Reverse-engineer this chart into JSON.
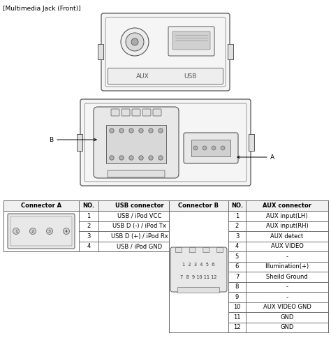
{
  "title": "[Multimedia Jack (Front)]",
  "title_fontsize": 6.5,
  "usb_table_headers": [
    "Connector A",
    "NO.",
    "USB connector"
  ],
  "usb_rows": [
    [
      "1",
      "USB / iPod VCC"
    ],
    [
      "2",
      "USB D (-) / iPod Tx"
    ],
    [
      "3",
      "USB D (+) / iPod Rx"
    ],
    [
      "4",
      "USB / iPod GND"
    ]
  ],
  "aux_table_headers": [
    "Connector B",
    "NO.",
    "AUX connector"
  ],
  "aux_rows": [
    [
      "1",
      "AUX input(LH)"
    ],
    [
      "2",
      "AUX input(RH)"
    ],
    [
      "3",
      "AUX detect"
    ],
    [
      "4",
      "AUX VIDEO"
    ],
    [
      "5",
      "-"
    ],
    [
      "6",
      "Illumination(+)"
    ],
    [
      "7",
      "Sheild Ground"
    ],
    [
      "8",
      "-"
    ],
    [
      "9",
      "-"
    ],
    [
      "10",
      "AUX VIDEO GND"
    ],
    [
      "11",
      "GND"
    ],
    [
      "12",
      "GND"
    ]
  ],
  "bg_color": "#ffffff",
  "line_color": "#000000",
  "edge_color": "#555555",
  "light_gray": "#e8e8e8",
  "mid_gray": "#cccccc",
  "dark_gray": "#888888"
}
